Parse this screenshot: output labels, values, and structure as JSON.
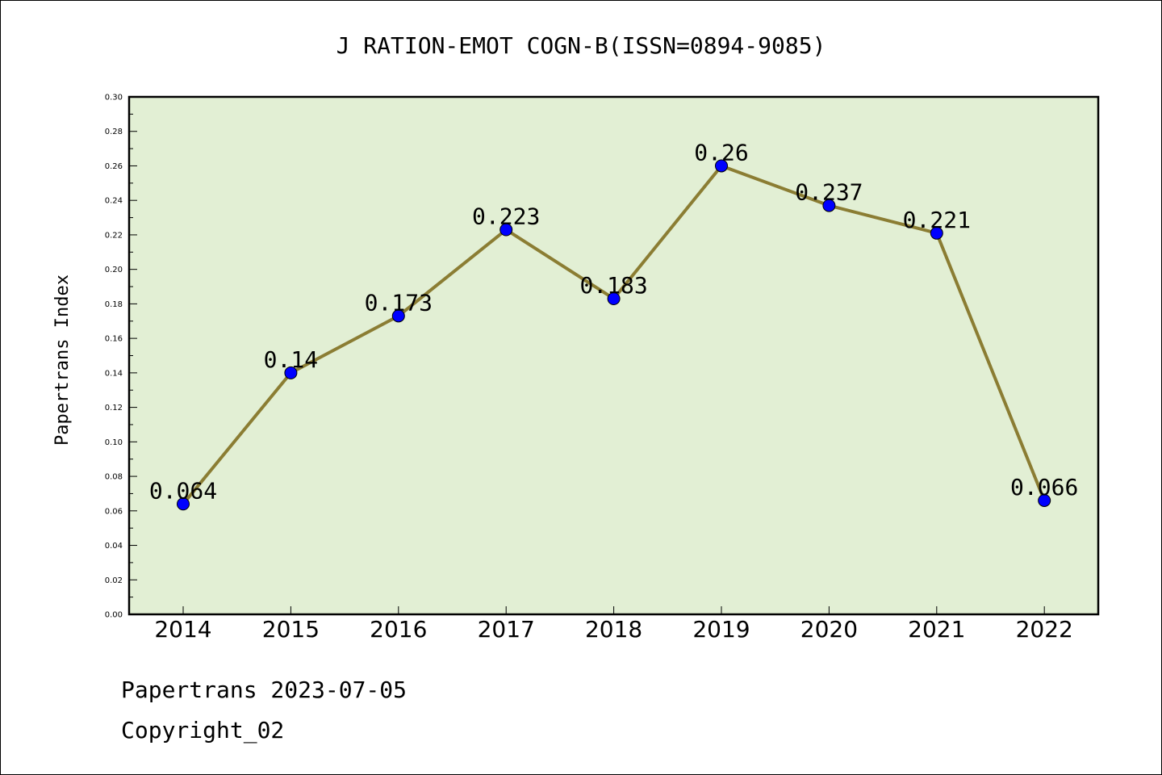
{
  "chart_data": {
    "type": "line",
    "title": "J RATION-EMOT COGN-B(ISSN=0894-9085)",
    "ylabel": "Papertrans Index",
    "xlabel": "",
    "categories": [
      "2014",
      "2015",
      "2016",
      "2017",
      "2018",
      "2019",
      "2020",
      "2021",
      "2022"
    ],
    "values": [
      0.064,
      0.14,
      0.173,
      0.223,
      0.183,
      0.26,
      0.237,
      0.221,
      0.066
    ],
    "data_labels": [
      "0.064",
      "0.14",
      "0.173",
      "0.223",
      "0.183",
      "0.26",
      "0.237",
      "0.221",
      "0.066"
    ],
    "ylim": [
      0,
      0.3
    ],
    "yticks": [
      "0.00",
      "0.02",
      "0.04",
      "0.06",
      "0.08",
      "0.10",
      "0.12",
      "0.14",
      "0.16",
      "0.18",
      "0.20",
      "0.22",
      "0.24",
      "0.26",
      "0.28",
      "0.30"
    ],
    "grid": false,
    "colors": {
      "plot_bg": "#e2efd4",
      "line": "#8b7d33",
      "marker": "#0000ff"
    }
  },
  "footer": {
    "line1": "Papertrans 2023-07-05",
    "line2": "Copyright_02"
  }
}
